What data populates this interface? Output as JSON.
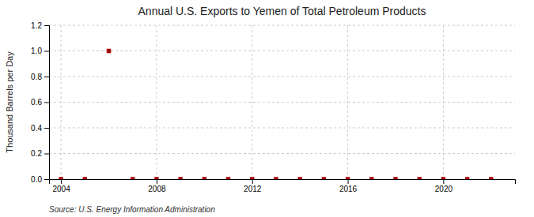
{
  "chart_data": {
    "type": "scatter",
    "title": "Annual U.S. Exports to Yemen of Total Petroleum Products",
    "ylabel": "Thousand Barrels per Day",
    "source": "Source: U.S. Energy Information Administration",
    "x": [
      2004,
      2005,
      2006,
      2007,
      2008,
      2009,
      2010,
      2011,
      2012,
      2013,
      2014,
      2015,
      2016,
      2017,
      2018,
      2019,
      2020,
      2021,
      2022
    ],
    "values": [
      0.0,
      0.0,
      1.0,
      0.0,
      0.0,
      0.0,
      0.0,
      0.0,
      0.0,
      0.0,
      0.0,
      0.0,
      0.0,
      0.0,
      0.0,
      0.0,
      0.0,
      0.0,
      0.0
    ],
    "color": "#aa0000",
    "marker": "square",
    "grid": true,
    "xlim": [
      2003.5,
      2023
    ],
    "xticks": [
      2004,
      2008,
      2012,
      2016,
      2020
    ],
    "ylim": [
      0.0,
      1.2
    ],
    "yticks": [
      {
        "value": 0.0,
        "label": "0.0"
      },
      0.2,
      0.4,
      0.6,
      0.8,
      {
        "value": 1.0,
        "label": "1.0"
      },
      1.2
    ]
  }
}
